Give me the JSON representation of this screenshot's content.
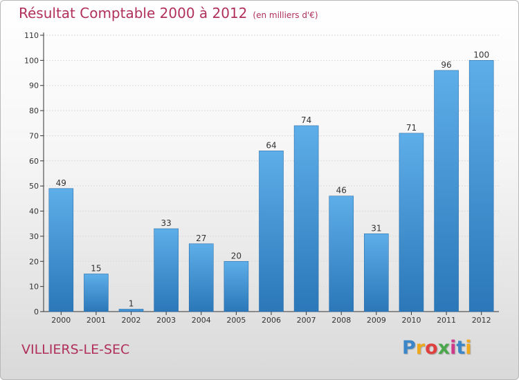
{
  "header": {
    "title": "Résultat Comptable 2000 à 2012",
    "subtitle": "(en milliers d'€)"
  },
  "footer": {
    "commune": "VILLIERS-LE-SEC",
    "logo": {
      "letters": [
        "P",
        "r",
        "o",
        "x",
        "i",
        "t",
        "i"
      ],
      "colors": [
        "#3a86c8",
        "#f0a81c",
        "#e04040",
        "#4aa84a",
        "#d03a8a",
        "#3a86c8",
        "#f0a81c"
      ]
    }
  },
  "colors": {
    "bar_light": "#5dade8",
    "bar_dark": "#2f7ec0",
    "title": "#b0305a",
    "grid": "#dddddd"
  },
  "chart_data": {
    "type": "bar",
    "title": "Résultat Comptable 2000 à 2012",
    "subtitle": "(en milliers d'€)",
    "categories": [
      "2000",
      "2001",
      "2002",
      "2003",
      "2004",
      "2005",
      "2006",
      "2007",
      "2008",
      "2009",
      "2010",
      "2011",
      "2012"
    ],
    "values": [
      49,
      15,
      1,
      33,
      27,
      20,
      64,
      74,
      46,
      31,
      71,
      96,
      100
    ],
    "ylim": [
      0,
      110
    ],
    "yticks": [
      0,
      10,
      20,
      30,
      40,
      50,
      60,
      70,
      80,
      90,
      100,
      110
    ],
    "grid": "horizontal",
    "data_labels": true
  }
}
